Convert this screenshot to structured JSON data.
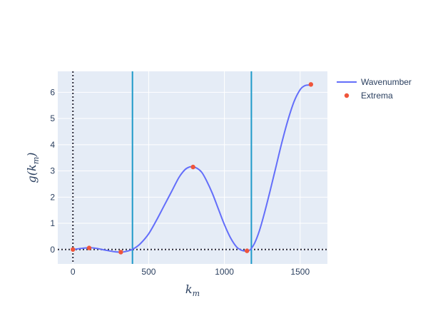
{
  "chart_data": {
    "type": "line",
    "xlabel": "k_m",
    "ylabel": "g(k_m)",
    "xlim": [
      -100,
      1680
    ],
    "ylim": [
      -0.55,
      6.8
    ],
    "x_ticks": [
      0,
      500,
      1000,
      1500
    ],
    "y_ticks": [
      0,
      1,
      2,
      3,
      4,
      5,
      6
    ],
    "grid": true,
    "legend_position": "top-right",
    "series": [
      {
        "name": "Wavenumber",
        "mode": "line",
        "color": "#636efa",
        "x": [
          0,
          50,
          110,
          160,
          220,
          270,
          320,
          360,
          390,
          420,
          450,
          500,
          550,
          600,
          650,
          700,
          740,
          770,
          790,
          820,
          850,
          880,
          920,
          960,
          1000,
          1040,
          1080,
          1110,
          1140,
          1160,
          1175,
          1200,
          1230,
          1260,
          1300,
          1340,
          1380,
          1420,
          1460,
          1500,
          1530,
          1560,
          1575
        ],
        "y": [
          0,
          0.04,
          0.07,
          0.04,
          -0.03,
          -0.08,
          -0.1,
          -0.06,
          0.0,
          0.1,
          0.25,
          0.6,
          1.1,
          1.65,
          2.2,
          2.75,
          3.05,
          3.15,
          3.16,
          3.1,
          2.95,
          2.65,
          2.15,
          1.55,
          0.95,
          0.45,
          0.1,
          -0.02,
          -0.06,
          -0.04,
          0.02,
          0.25,
          0.7,
          1.3,
          2.2,
          3.15,
          4.1,
          4.95,
          5.65,
          6.1,
          6.25,
          6.28,
          6.3
        ]
      },
      {
        "name": "Extrema",
        "mode": "markers",
        "color": "#ef553b",
        "x": [
          0,
          107,
          316,
          793,
          1149,
          1571
        ],
        "y": [
          0.0,
          0.06,
          -0.1,
          3.15,
          -0.05,
          6.3
        ]
      }
    ],
    "vertical_lines": [
      {
        "x": 393,
        "color": "#1f9ac9",
        "style": "solid"
      },
      {
        "x": 1178,
        "color": "#1f9ac9",
        "style": "solid"
      },
      {
        "x": 0,
        "color": "#2a2a3a",
        "style": "dotted"
      }
    ],
    "horizontal_lines": [
      {
        "y": 0,
        "color": "#2a2a3a",
        "style": "dotted"
      }
    ]
  }
}
